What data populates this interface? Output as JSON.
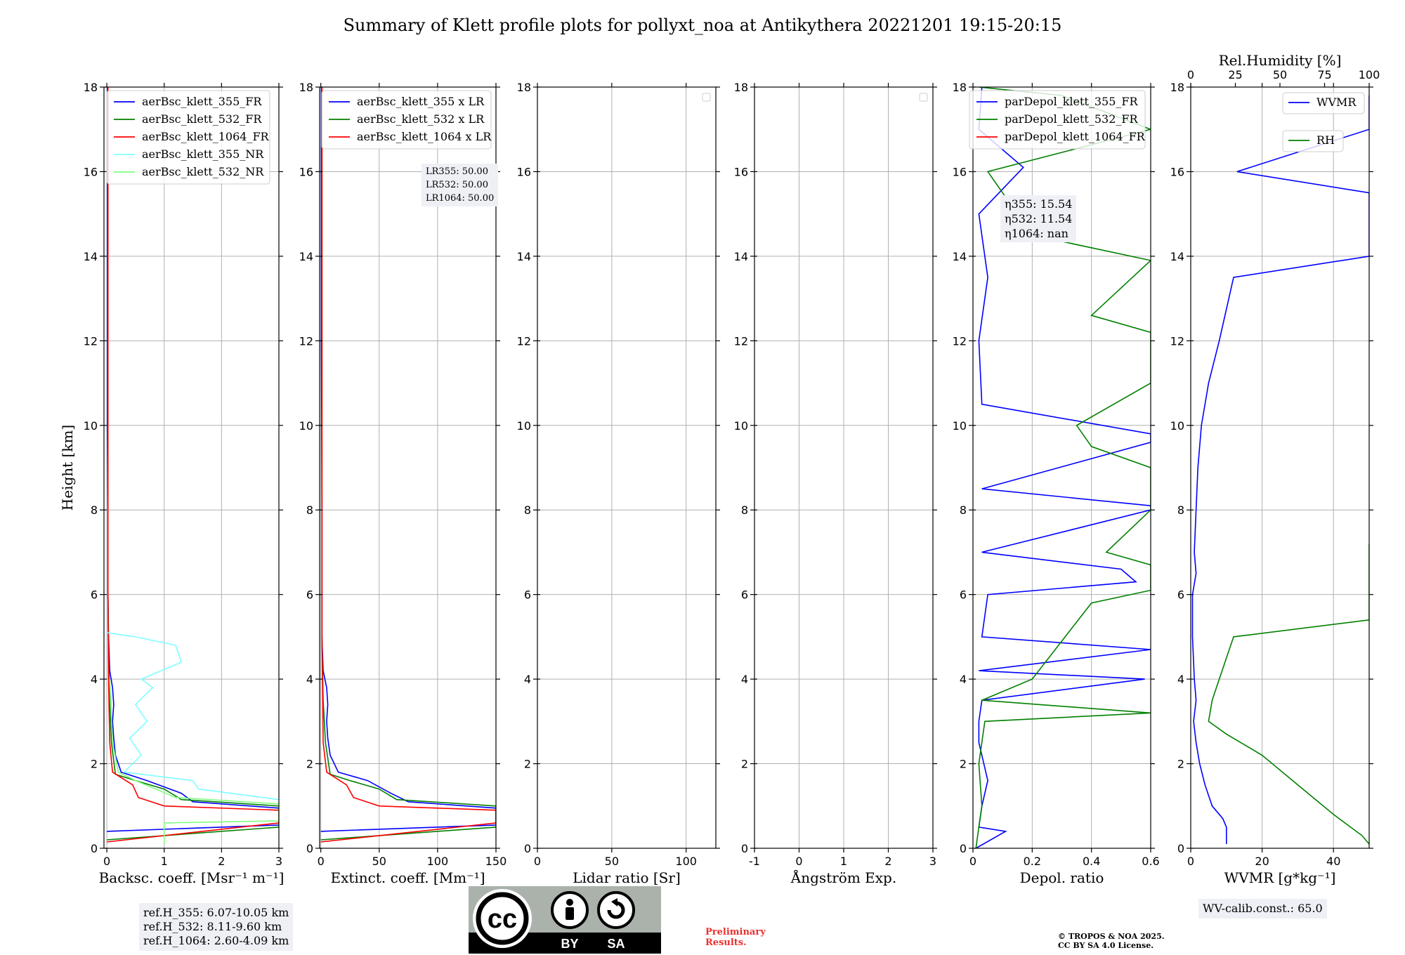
{
  "title": "Summary of Klett profile plots for pollyxt_noa at Antikythera 20221201 19:15-20:15",
  "chart_data": [
    {
      "type": "line",
      "panel": "backscatter",
      "xlabel": "Backsc. coeff. [Msr⁻¹ m⁻¹]",
      "ylabel": "Height [km]",
      "xlim": [
        -0.05,
        3
      ],
      "ylim": [
        0,
        18
      ],
      "xticks": [
        0,
        1,
        2,
        3
      ],
      "yticks": [
        0,
        2,
        4,
        6,
        8,
        10,
        12,
        14,
        16,
        18
      ],
      "grid": true,
      "legend_position": "upper-left",
      "series": [
        {
          "name": "aerBsc_klett_355_FR",
          "color": "#0000ff",
          "points": [
            [
              0,
              0.4
            ],
            [
              3,
              0.55
            ],
            [
              3,
              0.95
            ],
            [
              1.5,
              1.1
            ],
            [
              1.3,
              1.3
            ],
            [
              0.7,
              1.6
            ],
            [
              0.25,
              1.8
            ],
            [
              0.15,
              2.2
            ],
            [
              0.12,
              2.6
            ],
            [
              0.1,
              3.0
            ],
            [
              0.12,
              3.4
            ],
            [
              0.1,
              3.8
            ],
            [
              0.05,
              4.2
            ],
            [
              0.03,
              5
            ],
            [
              0.02,
              6
            ],
            [
              0.02,
              8
            ],
            [
              0.01,
              10
            ],
            [
              0.01,
              14
            ],
            [
              0.01,
              18
            ]
          ]
        },
        {
          "name": "aerBsc_klett_532_FR",
          "color": "#008000",
          "points": [
            [
              0,
              0.2
            ],
            [
              3,
              0.5
            ],
            [
              3,
              1.0
            ],
            [
              1.3,
              1.15
            ],
            [
              1.0,
              1.4
            ],
            [
              0.5,
              1.6
            ],
            [
              0.15,
              1.75
            ],
            [
              0.08,
              2.5
            ],
            [
              0.05,
              3.5
            ],
            [
              0.03,
              4.5
            ],
            [
              0.02,
              6
            ],
            [
              0.02,
              10
            ],
            [
              0.02,
              18
            ]
          ]
        },
        {
          "name": "aerBsc_klett_1064_FR",
          "color": "#ff0000",
          "points": [
            [
              0,
              0.15
            ],
            [
              3,
              0.6
            ],
            [
              3,
              0.9
            ],
            [
              1.0,
              1.0
            ],
            [
              0.55,
              1.2
            ],
            [
              0.45,
              1.5
            ],
            [
              0.1,
              1.8
            ],
            [
              0.05,
              2.5
            ],
            [
              0.03,
              4
            ],
            [
              0.02,
              6
            ],
            [
              0.02,
              10
            ],
            [
              0.02,
              18
            ]
          ]
        },
        {
          "name": "aerBsc_klett_355_NR",
          "color": "#80ffff",
          "points": [
            [
              3,
              1.15
            ],
            [
              1.6,
              1.4
            ],
            [
              1.5,
              1.6
            ],
            [
              0.3,
              1.8
            ],
            [
              0.6,
              2.2
            ],
            [
              0.4,
              2.6
            ],
            [
              0.7,
              3.0
            ],
            [
              0.5,
              3.4
            ],
            [
              0.8,
              3.8
            ],
            [
              0.6,
              4.0
            ],
            [
              1.3,
              4.4
            ],
            [
              1.2,
              4.8
            ],
            [
              0.5,
              5.0
            ],
            [
              0,
              5.1
            ]
          ]
        },
        {
          "name": "aerBsc_klett_532_NR",
          "color": "#80ff80",
          "points": [
            [
              1.0,
              0.1
            ],
            [
              1.0,
              0.6
            ],
            [
              3,
              0.65
            ],
            [
              3,
              1.05
            ],
            [
              1.2,
              1.2
            ],
            [
              0.5,
              1.6
            ],
            [
              0.2,
              1.8
            ],
            [
              0.1,
              2.5
            ],
            [
              0.05,
              4
            ]
          ]
        }
      ],
      "refH": [
        "ref.H_355: 6.07-10.05 km",
        "ref.H_532: 8.11-9.60 km",
        "ref.H_1064: 2.60-4.09 km"
      ]
    },
    {
      "type": "line",
      "panel": "extinction",
      "xlabel": "Extinct. coeff. [Mm⁻¹]",
      "xlim": [
        -1,
        150
      ],
      "ylim": [
        0,
        18
      ],
      "xticks": [
        0,
        50,
        100,
        150
      ],
      "grid": true,
      "series": [
        {
          "name": "aerBsc_klett_355 x LR",
          "color": "#0000ff",
          "points": [
            [
              0,
              0.4
            ],
            [
              150,
              0.55
            ],
            [
              150,
              0.95
            ],
            [
              75,
              1.1
            ],
            [
              60,
              1.3
            ],
            [
              40,
              1.6
            ],
            [
              15,
              1.8
            ],
            [
              8,
              2.2
            ],
            [
              6,
              2.6
            ],
            [
              5,
              3.0
            ],
            [
              6,
              3.4
            ],
            [
              5,
              3.8
            ],
            [
              2,
              4.2
            ],
            [
              1,
              5
            ],
            [
              1,
              8
            ],
            [
              0.5,
              12
            ],
            [
              0.5,
              18
            ]
          ]
        },
        {
          "name": "aerBsc_klett_532 x LR",
          "color": "#008000",
          "points": [
            [
              0,
              0.2
            ],
            [
              150,
              0.5
            ],
            [
              150,
              1.0
            ],
            [
              65,
              1.15
            ],
            [
              50,
              1.4
            ],
            [
              25,
              1.6
            ],
            [
              8,
              1.75
            ],
            [
              4,
              2.5
            ],
            [
              2,
              3.5
            ],
            [
              1,
              5
            ],
            [
              1,
              10
            ],
            [
              1,
              18
            ]
          ]
        },
        {
          "name": "aerBsc_klett_1064 x LR",
          "color": "#ff0000",
          "points": [
            [
              0,
              0.15
            ],
            [
              150,
              0.6
            ],
            [
              150,
              0.9
            ],
            [
              50,
              1.0
            ],
            [
              28,
              1.2
            ],
            [
              22,
              1.5
            ],
            [
              5,
              1.8
            ],
            [
              2,
              2.5
            ],
            [
              1,
              5
            ],
            [
              1,
              10
            ],
            [
              1,
              18
            ]
          ]
        }
      ],
      "LR": [
        "LR355: 50.00",
        "LR532: 50.00",
        "LR1064: 50.00"
      ]
    },
    {
      "type": "line",
      "panel": "lidar_ratio",
      "xlabel": "Lidar ratio [Sr]",
      "xlim": [
        0,
        120
      ],
      "ylim": [
        0,
        18
      ],
      "xticks": [
        0,
        50,
        100
      ],
      "grid": true,
      "series": []
    },
    {
      "type": "line",
      "panel": "angstrom",
      "xlabel": "Ångström Exp.",
      "xlim": [
        -1,
        3
      ],
      "ylim": [
        0,
        18
      ],
      "xticks": [
        -1,
        0,
        1,
        2,
        3
      ],
      "grid": true,
      "series": []
    },
    {
      "type": "line",
      "panel": "depol",
      "xlabel": "Depol. ratio",
      "xlim": [
        0,
        0.6
      ],
      "ylim": [
        0,
        18
      ],
      "xticks": [
        0.0,
        0.2,
        0.4,
        0.6
      ],
      "grid": true,
      "series": [
        {
          "name": "parDepol_klett_355_FR",
          "color": "#0000ff",
          "points": [
            [
              0.01,
              0
            ],
            [
              0.11,
              0.4
            ],
            [
              0.02,
              0.5
            ],
            [
              0.03,
              1.0
            ],
            [
              0.05,
              1.6
            ],
            [
              0.02,
              2.5
            ],
            [
              0.02,
              3.0
            ],
            [
              0.03,
              3.5
            ],
            [
              0.58,
              4.0
            ],
            [
              0.02,
              4.2
            ],
            [
              0.6,
              4.7
            ],
            [
              0.03,
              5.0
            ],
            [
              0.05,
              6.0
            ],
            [
              0.55,
              6.3
            ],
            [
              0.5,
              6.6
            ],
            [
              0.03,
              7.0
            ],
            [
              0.6,
              8.0
            ],
            [
              0.6,
              8.1
            ],
            [
              0.03,
              8.5
            ],
            [
              0.6,
              9.6
            ],
            [
              0.6,
              9.8
            ],
            [
              0.03,
              10.5
            ],
            [
              0.02,
              12
            ],
            [
              0.05,
              13.5
            ],
            [
              0.02,
              15
            ],
            [
              0.17,
              16.1
            ],
            [
              0.02,
              17
            ],
            [
              0.03,
              18
            ]
          ]
        },
        {
          "name": "parDepol_klett_532_FR",
          "color": "#008000",
          "points": [
            [
              0.01,
              0
            ],
            [
              0.02,
              0.5
            ],
            [
              0.03,
              1.0
            ],
            [
              0.02,
              2.0
            ],
            [
              0.04,
              3.0
            ],
            [
              0.6,
              3.2
            ],
            [
              0.03,
              3.5
            ],
            [
              0.2,
              4.0
            ],
            [
              0.4,
              5.8
            ],
            [
              0.6,
              6.1
            ],
            [
              0.6,
              6.4
            ],
            [
              0.6,
              6.7
            ],
            [
              0.45,
              7.0
            ],
            [
              0.6,
              8.0
            ],
            [
              0.6,
              8.5
            ],
            [
              0.6,
              9.0
            ],
            [
              0.4,
              9.5
            ],
            [
              0.35,
              10.0
            ],
            [
              0.6,
              11.0
            ],
            [
              0.6,
              11.5
            ],
            [
              0.6,
              12.2
            ],
            [
              0.4,
              12.6
            ],
            [
              0.6,
              13.9
            ],
            [
              0.2,
              14.5
            ],
            [
              0.05,
              16
            ],
            [
              0.6,
              17.0
            ],
            [
              0.3,
              17.8
            ],
            [
              0.02,
              18
            ]
          ]
        },
        {
          "name": "parDepol_klett_1064_FR",
          "color": "#ff0000",
          "points": []
        }
      ],
      "eta": [
        "η355: 15.54",
        "η532: 11.54",
        "η1064: nan"
      ]
    },
    {
      "type": "line",
      "panel": "wvmr_rh",
      "xlabel": "WVMR [g*kg⁻¹]",
      "xlabel_top": "Rel.Humidity [%]",
      "xlim": [
        0,
        50
      ],
      "xlim_top": [
        0,
        100
      ],
      "ylim": [
        0,
        18
      ],
      "xticks": [
        0,
        20,
        40
      ],
      "xticks_top": [
        0,
        25,
        50,
        75,
        100
      ],
      "grid": true,
      "series": [
        {
          "name": "WVMR",
          "color": "#0000ff",
          "points": [
            [
              10,
              0.1
            ],
            [
              10,
              0.5
            ],
            [
              9,
              0.7
            ],
            [
              6,
              1.0
            ],
            [
              4,
              1.5
            ],
            [
              2.5,
              2.0
            ],
            [
              1.5,
              2.5
            ],
            [
              0.8,
              3.0
            ],
            [
              1.5,
              3.5
            ],
            [
              1,
              4.0
            ],
            [
              0.5,
              5.0
            ],
            [
              0.5,
              6.0
            ],
            [
              1.5,
              6.5
            ],
            [
              1,
              7.0
            ],
            [
              1.5,
              8.0
            ],
            [
              2,
              9.0
            ],
            [
              3,
              10.0
            ],
            [
              5,
              11.0
            ],
            [
              8,
              12.0
            ],
            [
              12,
              13.5
            ],
            [
              50,
              14.0
            ],
            [
              50,
              15.0
            ],
            [
              50,
              15.5
            ],
            [
              13,
              16.0
            ],
            [
              50,
              17.0
            ],
            [
              50,
              17.8
            ]
          ]
        },
        {
          "name": "RH",
          "color": "#008000",
          "points": [
            [
              50,
              0.1
            ],
            [
              48,
              0.3
            ],
            [
              40,
              0.8
            ],
            [
              30,
              1.5
            ],
            [
              20,
              2.2
            ],
            [
              10,
              2.7
            ],
            [
              5,
              3.0
            ],
            [
              6,
              3.5
            ],
            [
              8,
              4.0
            ],
            [
              12,
              5.0
            ],
            [
              50,
              5.4
            ],
            [
              50,
              6.0
            ],
            [
              50,
              6.5
            ],
            [
              50,
              7.2
            ]
          ]
        }
      ],
      "calib": "WV-calib.const.: 65.0"
    }
  ],
  "badge": {
    "cc": "cc",
    "by": "BY",
    "sa": "SA"
  },
  "footer": {
    "prelim_line1": "Preliminary",
    "prelim_line2": "Results.",
    "copyright_line1": "© TROPOS & NOA 2025.",
    "copyright_line2": "CC BY SA 4.0 License."
  }
}
